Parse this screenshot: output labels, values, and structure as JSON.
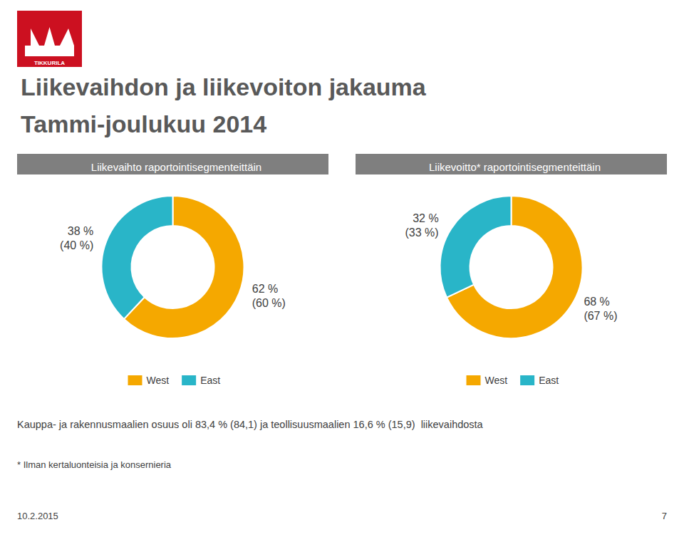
{
  "title": "Liikevaihdon ja liikevoiton jakauma",
  "subtitle": "Tammi-joulukuu 2014",
  "annotations": [
    "TIKKURILA",
    "Kauppa- ja rakennusmaalien osuus oli 83,4 % (84,1) ja teollisuusmaalien 16,6 % (15,9)  liikevaihdosta",
    "* Ilman kertaluonteisia ja konsernieria",
    "10.2.2015",
    "7"
  ],
  "chart_data": [
    {
      "type": "pie",
      "title": "Liikevaihto raportointisegmenteittäin",
      "categories": [
        "West",
        "East"
      ],
      "values": [
        62,
        38
      ],
      "value_labels": [
        "62 %\n(60 %)",
        "38 %\n(40 %)"
      ],
      "colors": [
        "#F5A800",
        "#29B5C8"
      ],
      "data_labels": true,
      "legend": "bottom"
    },
    {
      "type": "pie",
      "title": "Liikevoitto* raportointisegmenteittäin",
      "categories": [
        "West",
        "East"
      ],
      "values": [
        68,
        32
      ],
      "value_labels": [
        "68 %\n(67 %)",
        "32 %\n(33 %)"
      ],
      "colors": [
        "#F5A800",
        "#29B5C8"
      ],
      "data_labels": true,
      "legend": "bottom"
    }
  ]
}
